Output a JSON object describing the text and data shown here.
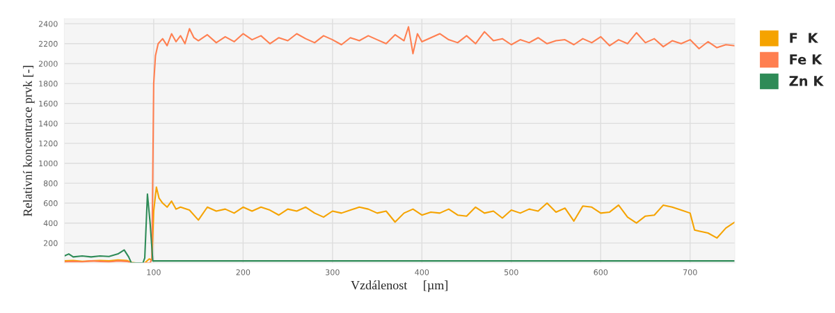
{
  "chart_data": {
    "type": "line",
    "xlabel": "Vzdálenost     [µm]",
    "ylabel": "Relativní koncentrace prvk [-]",
    "xlim": [
      0,
      750
    ],
    "xticks": [
      100,
      200,
      300,
      400,
      500,
      600,
      700
    ],
    "ylim": [
      0,
      2450
    ],
    "yticks": [
      200,
      400,
      600,
      800,
      1000,
      1200,
      1400,
      1600,
      1800,
      2000,
      2200,
      2400
    ],
    "grid": true,
    "legend": "top right",
    "marker": "none",
    "line_style": "solid",
    "series": [
      {
        "name": "F  K",
        "color": "#f5a300",
        "x": [
          0,
          10,
          20,
          30,
          40,
          50,
          60,
          70,
          75,
          80,
          90,
          95,
          98,
          100,
          103,
          106,
          110,
          115,
          120,
          125,
          130,
          140,
          150,
          160,
          170,
          180,
          190,
          200,
          210,
          220,
          230,
          240,
          250,
          260,
          270,
          280,
          290,
          300,
          310,
          320,
          330,
          340,
          350,
          360,
          370,
          380,
          390,
          400,
          410,
          420,
          430,
          440,
          450,
          460,
          470,
          480,
          490,
          500,
          510,
          520,
          530,
          540,
          550,
          560,
          570,
          580,
          590,
          600,
          610,
          620,
          630,
          640,
          650,
          660,
          670,
          680,
          690,
          700,
          705,
          710,
          720,
          730,
          740,
          750
        ],
        "values": [
          20,
          25,
          15,
          20,
          25,
          20,
          30,
          25,
          5,
          0,
          0,
          40,
          30,
          520,
          760,
          650,
          600,
          560,
          620,
          540,
          560,
          530,
          430,
          560,
          520,
          540,
          500,
          560,
          520,
          560,
          530,
          480,
          540,
          520,
          560,
          500,
          460,
          520,
          500,
          530,
          560,
          540,
          500,
          520,
          410,
          500,
          540,
          480,
          510,
          500,
          540,
          480,
          470,
          560,
          500,
          520,
          450,
          530,
          500,
          540,
          520,
          600,
          510,
          550,
          420,
          570,
          560,
          500,
          510,
          580,
          460,
          400,
          470,
          480,
          580,
          560,
          530,
          500,
          330,
          320,
          300,
          250,
          350,
          410
        ]
      },
      {
        "name": "Fe K",
        "color": "#ff7f50",
        "x": [
          0,
          10,
          20,
          30,
          40,
          50,
          60,
          70,
          75,
          90,
          96,
          98,
          100,
          102,
          105,
          110,
          115,
          120,
          125,
          130,
          135,
          140,
          145,
          150,
          160,
          170,
          180,
          190,
          200,
          210,
          220,
          230,
          240,
          250,
          260,
          270,
          280,
          290,
          300,
          310,
          320,
          330,
          340,
          350,
          360,
          370,
          380,
          385,
          390,
          395,
          400,
          410,
          420,
          430,
          440,
          450,
          460,
          470,
          480,
          490,
          500,
          510,
          520,
          530,
          540,
          550,
          560,
          570,
          580,
          590,
          600,
          610,
          620,
          630,
          640,
          650,
          660,
          670,
          680,
          690,
          700,
          710,
          720,
          730,
          740,
          750
        ],
        "values": [
          10,
          15,
          10,
          20,
          15,
          10,
          20,
          15,
          0,
          0,
          0,
          40,
          1800,
          2080,
          2200,
          2250,
          2180,
          2300,
          2220,
          2280,
          2200,
          2350,
          2260,
          2230,
          2290,
          2210,
          2270,
          2220,
          2300,
          2240,
          2280,
          2200,
          2260,
          2230,
          2300,
          2250,
          2210,
          2280,
          2240,
          2190,
          2260,
          2230,
          2280,
          2240,
          2200,
          2290,
          2230,
          2370,
          2100,
          2300,
          2220,
          2260,
          2300,
          2240,
          2210,
          2280,
          2200,
          2320,
          2230,
          2250,
          2190,
          2240,
          2210,
          2260,
          2200,
          2230,
          2240,
          2190,
          2250,
          2210,
          2270,
          2180,
          2240,
          2200,
          2310,
          2210,
          2250,
          2170,
          2230,
          2200,
          2240,
          2150,
          2220,
          2160,
          2190,
          2180
        ]
      },
      {
        "name": "Zn K",
        "color": "#2e8b57",
        "x": [
          0,
          5,
          10,
          20,
          30,
          40,
          50,
          60,
          67,
          72,
          75,
          88,
          90,
          93,
          96,
          99,
          105,
          200,
          300,
          400,
          500,
          600,
          700,
          750
        ],
        "values": [
          70,
          90,
          60,
          70,
          60,
          70,
          65,
          90,
          130,
          60,
          0,
          0,
          50,
          690,
          400,
          20,
          20,
          20,
          20,
          20,
          20,
          20,
          20,
          20
        ]
      }
    ]
  }
}
